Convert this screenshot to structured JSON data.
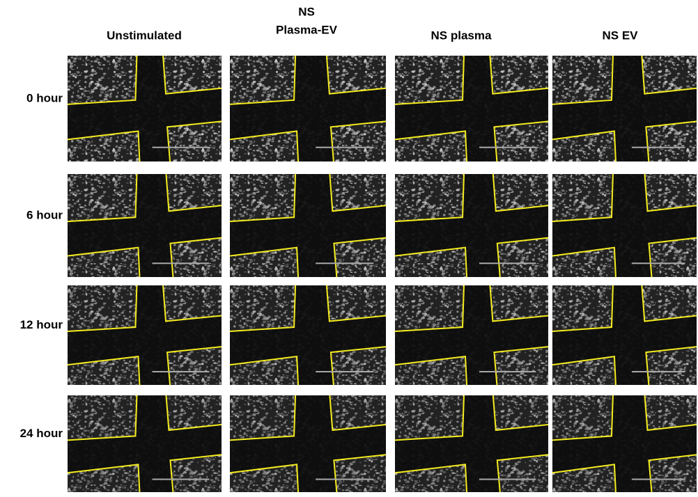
{
  "columns": [
    [
      "Unstimulated"
    ],
    [
      "NS",
      "Plasma-EV"
    ],
    [
      "NS plasma"
    ],
    [
      "NS EV"
    ]
  ],
  "rows": [
    "0 hour",
    "6 hour",
    "12 hour",
    "24 hour"
  ]
}
